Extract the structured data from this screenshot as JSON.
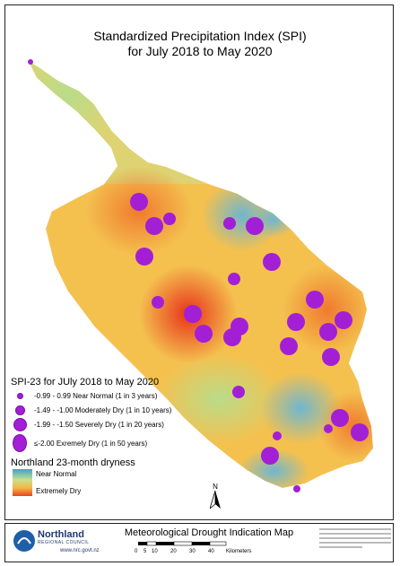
{
  "title": {
    "line1": "Standardized Precipitation Index (SPI)",
    "line2": "for July 2018 to May 2020"
  },
  "legend": {
    "title": "SPI-23 for JUly 2018 to May 2020",
    "items": [
      {
        "label": "-0.99 - 0.99  Near Normal (1 in 3 years)",
        "size": "small"
      },
      {
        "label": "-1.49 - -1.00 Moderately Dry (1 in 10 years)",
        "size": "medium"
      },
      {
        "label": "-1.99 - -1.50 Severely Dry (1 in 20 years)",
        "size": "large"
      },
      {
        "label": "≤-2.00  Exremely Dry (1 in 50 years)",
        "size": "xlarge"
      }
    ],
    "symbol_color": "#a31fd6"
  },
  "dryness": {
    "title": "Northland 23-month dryness",
    "high_label": "Near Normal",
    "low_label": "Extremely Dry",
    "colors": [
      "#3fa3c7",
      "#c9e08a",
      "#f6b548",
      "#e8431f"
    ]
  },
  "north_label": "N",
  "footer": {
    "org_name": "Northland",
    "org_sub": "REGIONAL COUNCIL",
    "org_url": "www.nrc.govt.nz",
    "map_title": "Meteorological Drought Indication Map",
    "scale_ticks": [
      "0",
      "5",
      "10",
      "20",
      "30",
      "40"
    ],
    "scale_unit": "Kilometers"
  }
}
